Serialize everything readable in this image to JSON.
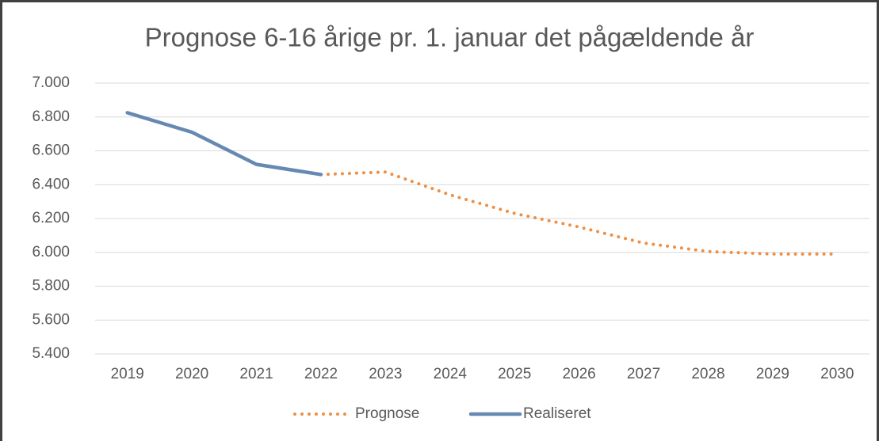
{
  "chart_data": {
    "type": "line",
    "title": "Prognose 6-16 årige pr. 1. januar det pågældende år",
    "categories": [
      "2019",
      "2020",
      "2021",
      "2022",
      "2023",
      "2024",
      "2025",
      "2026",
      "2027",
      "2028",
      "2029",
      "2030"
    ],
    "series": [
      {
        "name": "Prognose",
        "color": "#ed8f45",
        "style": "dotted",
        "values": [
          null,
          null,
          null,
          6460,
          6475,
          6340,
          6230,
          6150,
          6055,
          6005,
          5990,
          5990
        ]
      },
      {
        "name": "Realiseret",
        "color": "#6689b2",
        "style": "solid",
        "values": [
          6825,
          6710,
          6520,
          6460,
          null,
          null,
          null,
          null,
          null,
          null,
          null,
          null
        ]
      }
    ],
    "ylim": [
      5400,
      7000
    ],
    "yticks": [
      {
        "value": 5400,
        "label": "5.400"
      },
      {
        "value": 5600,
        "label": "5.600"
      },
      {
        "value": 5800,
        "label": "5.800"
      },
      {
        "value": 6000,
        "label": "6.000"
      },
      {
        "value": 6200,
        "label": "6.200"
      },
      {
        "value": 6400,
        "label": "6.400"
      },
      {
        "value": 6600,
        "label": "6.600"
      },
      {
        "value": 6800,
        "label": "6.800"
      },
      {
        "value": 7000,
        "label": "7.000"
      }
    ],
    "grid": true,
    "legend": "bottom"
  }
}
